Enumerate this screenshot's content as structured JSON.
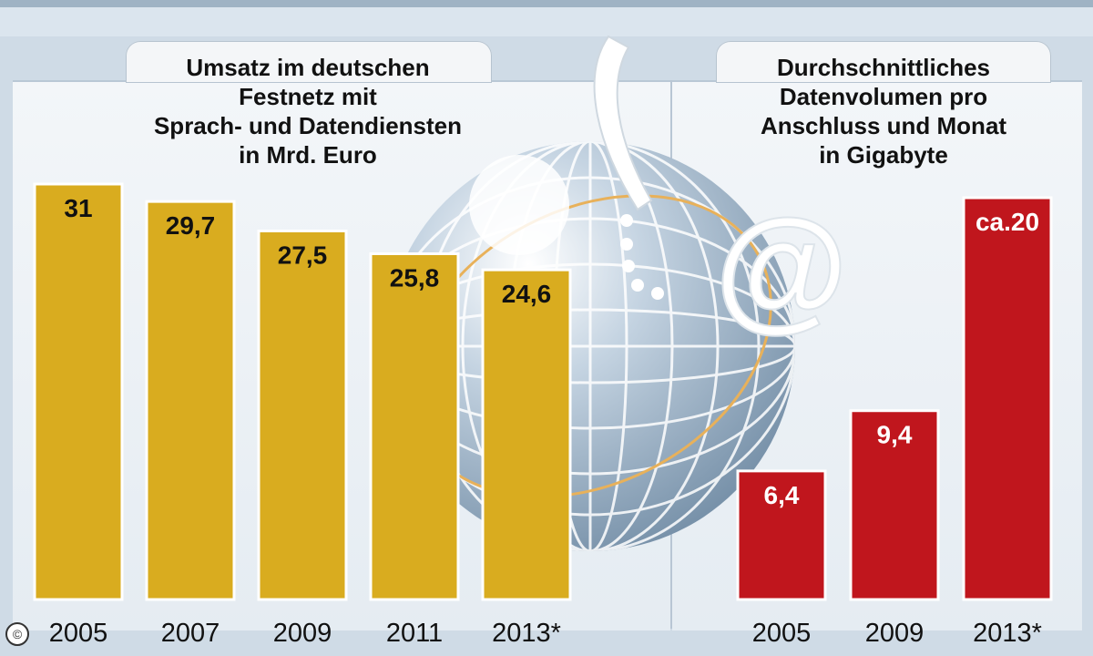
{
  "copyright_symbol": "©",
  "colors": {
    "left_bars": "#d9ac1f",
    "right_bars": "#c0161d",
    "background": "#cfdbe6"
  },
  "chart_data": [
    {
      "type": "bar",
      "title_lines": [
        "Umsatz im deutschen",
        "Festnetz mit",
        "Sprach- und Datendiensten",
        "in Mrd. Euro"
      ],
      "categories": [
        "2005",
        "2007",
        "2009",
        "2011",
        "2013*"
      ],
      "values": [
        31,
        29.7,
        27.5,
        25.8,
        24.6
      ],
      "value_labels": [
        "31",
        "29,7",
        "27,5",
        "25,8",
        "24,6"
      ],
      "ylim": [
        0,
        31
      ],
      "color": "#d9ac1f"
    },
    {
      "type": "bar",
      "title_lines": [
        "Durchschnittliches",
        "Datenvolumen pro",
        "Anschluss und Monat",
        "in Gigabyte"
      ],
      "categories": [
        "2005",
        "2009",
        "2013*"
      ],
      "values": [
        6.4,
        9.4,
        20
      ],
      "value_labels": [
        "6,4",
        "9,4",
        "ca.20"
      ],
      "ylim": [
        0,
        20.5
      ],
      "color": "#c0161d"
    }
  ]
}
